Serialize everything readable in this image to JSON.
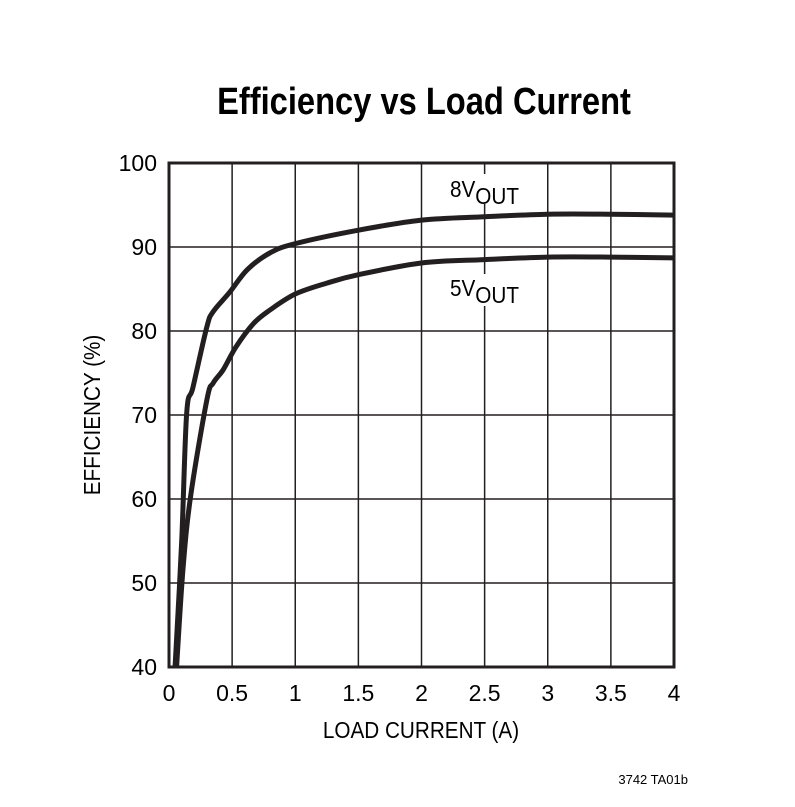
{
  "chart_data": {
    "type": "line",
    "title": "Efficiency vs Load Current",
    "xlabel": "LOAD CURRENT (A)",
    "ylabel": "EFFICIENCY (%)",
    "xlim": [
      0,
      4
    ],
    "ylim": [
      40,
      100
    ],
    "xticks": [
      "0",
      "0.5",
      "1",
      "1.5",
      "2",
      "2.5",
      "3",
      "3.5",
      "4"
    ],
    "yticks": [
      "40",
      "50",
      "60",
      "70",
      "80",
      "90",
      "100"
    ],
    "grid": true,
    "line_color": "#231f20",
    "series": [
      {
        "name": "8VOUT",
        "label_main": "8V",
        "label_sub": "OUT",
        "x": [
          0.048,
          0.1,
          0.14,
          0.19,
          0.3,
          0.35,
          0.48,
          0.62,
          0.8,
          1.0,
          1.5,
          2.0,
          2.5,
          3.0,
          3.5,
          4.0
        ],
        "y": [
          40,
          54.8,
          70.2,
          73.3,
          80.5,
          82.3,
          84.6,
          87.3,
          89.3,
          90.4,
          92.0,
          93.2,
          93.6,
          93.9,
          93.9,
          93.8
        ]
      },
      {
        "name": "5VOUT",
        "label_main": "5V",
        "label_sub": "OUT",
        "x": [
          0.06,
          0.11,
          0.17,
          0.3,
          0.35,
          0.43,
          0.53,
          0.67,
          0.8,
          1.0,
          1.25,
          1.5,
          2.0,
          2.5,
          3.0,
          3.5,
          4.0
        ],
        "y": [
          40,
          51.5,
          60.2,
          71.8,
          73.8,
          75.4,
          78.1,
          80.9,
          82.5,
          84.4,
          85.7,
          86.7,
          88.1,
          88.5,
          88.8,
          88.8,
          88.7
        ]
      }
    ],
    "footnote": "3742 TA01b"
  }
}
